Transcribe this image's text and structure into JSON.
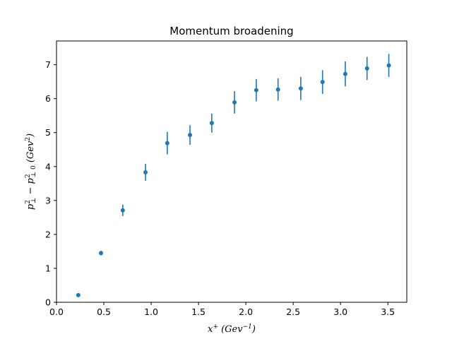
{
  "chart_data": {
    "type": "scatter",
    "title": "Momentum broadening",
    "xlabel": "x⁺ (Gev⁻¹)",
    "ylabel": "p⊥² − p⊥0² (Gev²)",
    "xlim": [
      0.0,
      3.7
    ],
    "ylim": [
      0.0,
      7.7
    ],
    "x_ticks": [
      0.0,
      0.5,
      1.0,
      1.5,
      2.0,
      2.5,
      3.0,
      3.5
    ],
    "x_tick_labels": [
      "0.0",
      "0.5",
      "1.0",
      "1.5",
      "2.0",
      "2.5",
      "3.0",
      "3.5"
    ],
    "y_ticks": [
      0,
      1,
      2,
      3,
      4,
      5,
      6,
      7
    ],
    "y_tick_labels": [
      "0",
      "1",
      "2",
      "3",
      "4",
      "5",
      "6",
      "7"
    ],
    "grid": false,
    "color": "#1f77b4",
    "points": [
      {
        "x": 0.23,
        "y": 0.21,
        "err": 0.02
      },
      {
        "x": 0.47,
        "y": 1.45,
        "err": 0.07
      },
      {
        "x": 0.7,
        "y": 2.71,
        "err": 0.17
      },
      {
        "x": 0.94,
        "y": 3.83,
        "err": 0.25
      },
      {
        "x": 1.17,
        "y": 4.69,
        "err": 0.33
      },
      {
        "x": 1.41,
        "y": 4.93,
        "err": 0.29
      },
      {
        "x": 1.64,
        "y": 5.28,
        "err": 0.28
      },
      {
        "x": 1.88,
        "y": 5.89,
        "err": 0.33
      },
      {
        "x": 2.11,
        "y": 6.25,
        "err": 0.33
      },
      {
        "x": 2.34,
        "y": 6.27,
        "err": 0.33
      },
      {
        "x": 2.58,
        "y": 6.3,
        "err": 0.34
      },
      {
        "x": 2.81,
        "y": 6.49,
        "err": 0.35
      },
      {
        "x": 3.05,
        "y": 6.73,
        "err": 0.37
      },
      {
        "x": 3.28,
        "y": 6.89,
        "err": 0.34
      },
      {
        "x": 3.51,
        "y": 6.98,
        "err": 0.34
      }
    ]
  }
}
